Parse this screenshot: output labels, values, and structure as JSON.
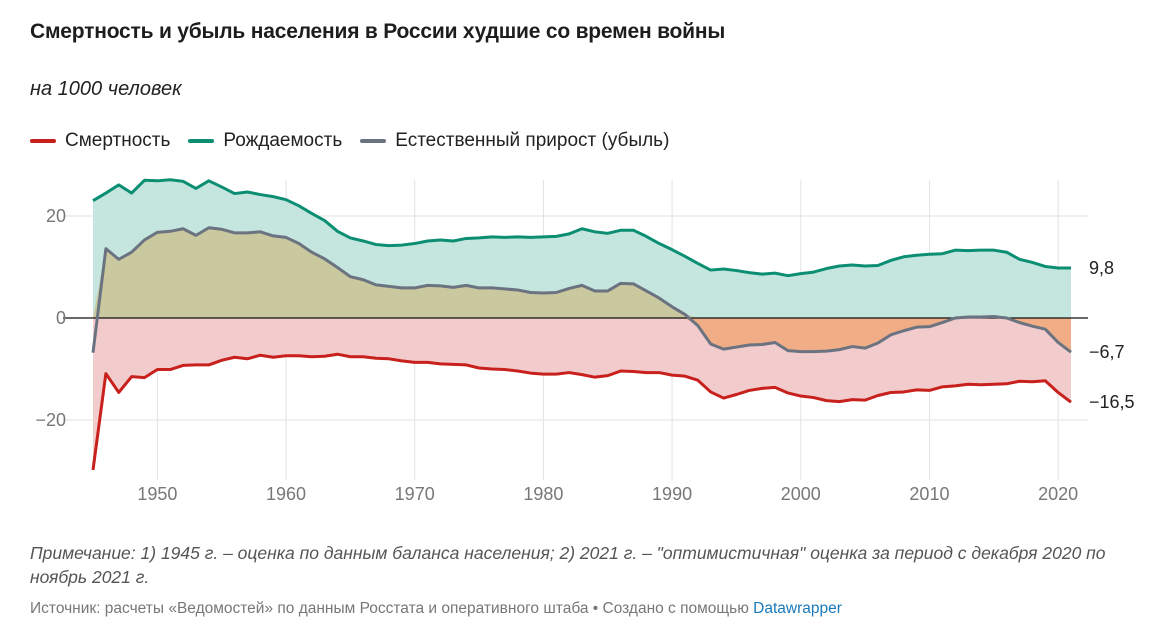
{
  "header": {
    "title": "Смертность и убыль населения в России худшие со времен войны",
    "subtitle": "на 1000 человек"
  },
  "legend": [
    {
      "label": "Смертность",
      "color": "#c8201c"
    },
    {
      "label": "Рождаемость",
      "color": "#0b8e72"
    },
    {
      "label": "Естественный прирост (убыль)",
      "color": "#6b7381"
    }
  ],
  "footer": {
    "note": "Примечание: 1) 1945 г. – оценка по данным баланса населения; 2) 2021 г. – \"оптимистичная\" оценка за период с декабря 2020 по ноябрь 2021 г.",
    "source_text": "Источник: расчеты «Ведомостей» по данным Росстата и оперативного штаба • Создано с помощью",
    "source_link": "Datawrapper"
  },
  "chart_data": {
    "type": "area",
    "xlim": [
      1945,
      2021
    ],
    "ylim": [
      -30,
      27
    ],
    "x_ticks": [
      1950,
      1960,
      1970,
      1980,
      1990,
      2000,
      2010,
      2020
    ],
    "x_tick_labels": [
      "1950",
      "1960",
      "1970",
      "1980",
      "1990",
      "2000",
      "2010",
      "2020"
    ],
    "y_ticks": [
      -20,
      0,
      20
    ],
    "y_tick_labels": [
      "−20",
      "0",
      "20"
    ],
    "grid": true,
    "colors": {
      "birth_fill": "#c5e6df",
      "death_fill": "#f2cccc",
      "growth_positive_fill": "#c9c89f",
      "growth_negative_fill": "#f0ad86"
    },
    "end_labels": [
      "9,8",
      "−6,7",
      "−16,5"
    ],
    "x": [
      1945,
      1946,
      1947,
      1948,
      1949,
      1950,
      1951,
      1952,
      1953,
      1954,
      1955,
      1956,
      1957,
      1958,
      1959,
      1960,
      1961,
      1962,
      1963,
      1964,
      1965,
      1966,
      1967,
      1968,
      1969,
      1970,
      1971,
      1972,
      1973,
      1974,
      1975,
      1976,
      1977,
      1978,
      1979,
      1980,
      1981,
      1982,
      1983,
      1984,
      1985,
      1986,
      1987,
      1988,
      1989,
      1990,
      1991,
      1992,
      1993,
      1994,
      1995,
      1996,
      1997,
      1998,
      1999,
      2000,
      2001,
      2002,
      2003,
      2004,
      2005,
      2006,
      2007,
      2008,
      2009,
      2010,
      2011,
      2012,
      2013,
      2014,
      2015,
      2016,
      2017,
      2018,
      2019,
      2020,
      2021
    ],
    "series": [
      {
        "name": "Смертность",
        "values": [
          -29.8,
          -10.9,
          -14.6,
          -11.5,
          -11.7,
          -10.1,
          -10.1,
          -9.3,
          -9.2,
          -9.2,
          -8.3,
          -7.7,
          -8.0,
          -7.3,
          -7.7,
          -7.4,
          -7.4,
          -7.6,
          -7.5,
          -7.1,
          -7.6,
          -7.6,
          -7.9,
          -8.0,
          -8.4,
          -8.7,
          -8.7,
          -9.0,
          -9.1,
          -9.2,
          -9.8,
          -10.0,
          -10.1,
          -10.4,
          -10.8,
          -11.0,
          -11.0,
          -10.7,
          -11.1,
          -11.6,
          -11.3,
          -10.4,
          -10.5,
          -10.7,
          -10.7,
          -11.2,
          -11.4,
          -12.2,
          -14.5,
          -15.7,
          -15.0,
          -14.2,
          -13.8,
          -13.6,
          -14.7,
          -15.3,
          -15.6,
          -16.2,
          -16.4,
          -16.0,
          -16.1,
          -15.2,
          -14.6,
          -14.5,
          -14.1,
          -14.2,
          -13.5,
          -13.3,
          -13.0,
          -13.1,
          -13.0,
          -12.9,
          -12.4,
          -12.5,
          -12.3,
          -14.6,
          -16.5
        ]
      },
      {
        "name": "Рождаемость",
        "values": [
          23.0,
          24.5,
          26.1,
          24.5,
          27.0,
          26.9,
          27.1,
          26.8,
          25.4,
          26.9,
          25.7,
          24.4,
          24.7,
          24.2,
          23.8,
          23.2,
          22.0,
          20.5,
          19.1,
          17.0,
          15.7,
          15.1,
          14.4,
          14.2,
          14.3,
          14.6,
          15.1,
          15.3,
          15.1,
          15.6,
          15.7,
          15.9,
          15.8,
          15.9,
          15.8,
          15.9,
          16.0,
          16.5,
          17.5,
          16.9,
          16.6,
          17.2,
          17.2,
          16.0,
          14.6,
          13.4,
          12.1,
          10.7,
          9.4,
          9.6,
          9.3,
          8.9,
          8.6,
          8.8,
          8.3,
          8.7,
          9.0,
          9.7,
          10.2,
          10.4,
          10.2,
          10.3,
          11.3,
          12.0,
          12.3,
          12.5,
          12.6,
          13.3,
          13.2,
          13.3,
          13.3,
          12.9,
          11.5,
          10.9,
          10.1,
          9.8,
          9.8
        ]
      },
      {
        "name": "Естественный прирост (убыль)",
        "values": [
          -6.8,
          13.6,
          11.5,
          12.9,
          15.3,
          16.8,
          17.0,
          17.5,
          16.2,
          17.7,
          17.4,
          16.7,
          16.7,
          16.9,
          16.1,
          15.8,
          14.6,
          12.9,
          11.6,
          9.9,
          8.1,
          7.5,
          6.5,
          6.2,
          5.9,
          5.9,
          6.4,
          6.3,
          6.0,
          6.4,
          5.9,
          5.9,
          5.7,
          5.5,
          5.0,
          4.9,
          5.0,
          5.8,
          6.4,
          5.3,
          5.3,
          6.8,
          6.7,
          5.3,
          3.9,
          2.2,
          0.7,
          -1.5,
          -5.1,
          -6.1,
          -5.7,
          -5.3,
          -5.2,
          -4.8,
          -6.4,
          -6.6,
          -6.6,
          -6.5,
          -6.2,
          -5.6,
          -5.9,
          -4.9,
          -3.3,
          -2.5,
          -1.8,
          -1.7,
          -0.9,
          0.0,
          0.2,
          0.2,
          0.3,
          0.0,
          -0.9,
          -1.6,
          -2.2,
          -4.8,
          -6.7
        ]
      }
    ]
  }
}
